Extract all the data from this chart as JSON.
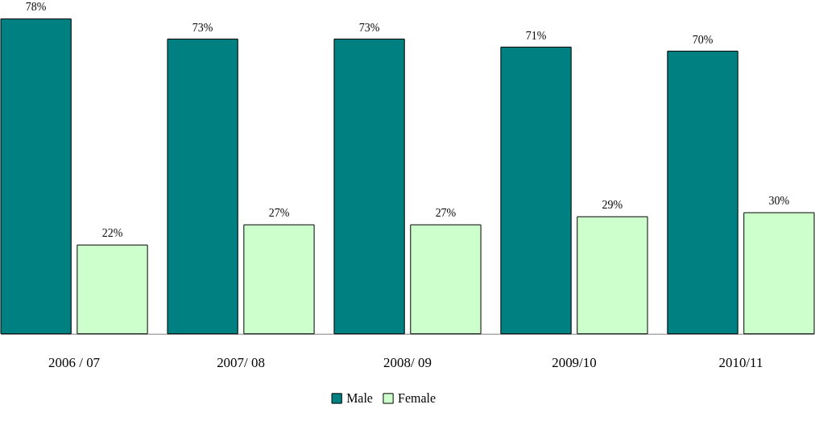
{
  "chart_data": {
    "type": "bar",
    "categories": [
      "2006 / 07",
      "2007/ 08",
      "2008/ 09",
      "2009/10",
      "2010/11"
    ],
    "series": [
      {
        "name": "Male",
        "color": "#008080",
        "values": [
          78,
          73,
          73,
          71,
          70
        ],
        "value_labels": [
          "78%",
          "73%",
          "73%",
          "71%",
          "70%"
        ]
      },
      {
        "name": "Female",
        "color": "#ccffcc",
        "values": [
          22,
          27,
          27,
          29,
          30
        ],
        "value_labels": [
          "22%",
          "27%",
          "27%",
          "29%",
          "30%"
        ]
      }
    ],
    "legend": "bottom",
    "grid": false
  }
}
